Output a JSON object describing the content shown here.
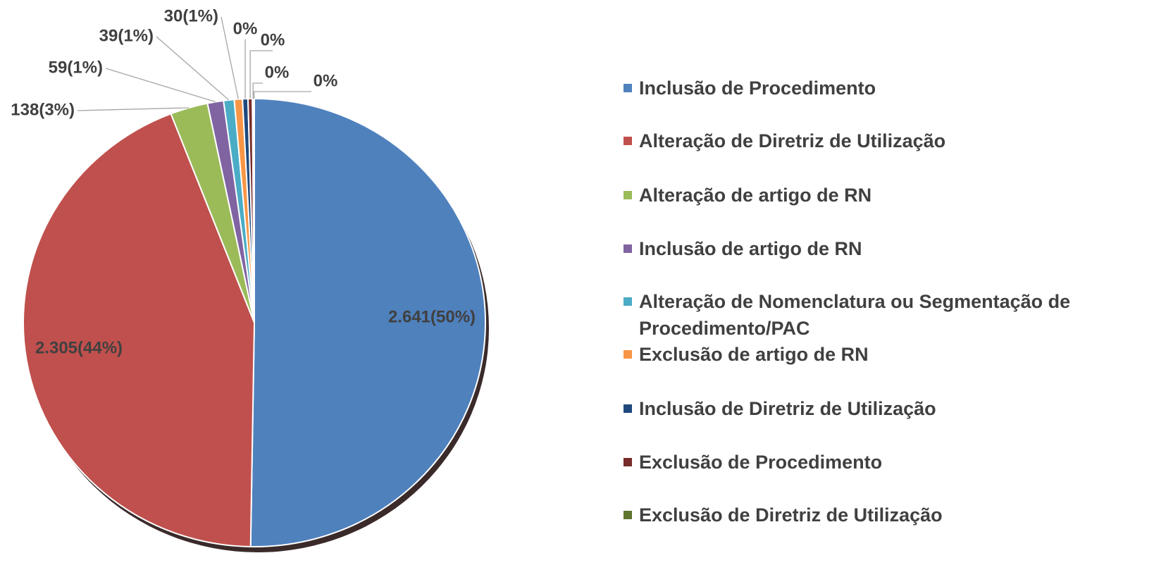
{
  "chart_data": {
    "type": "pie",
    "categories": [
      "Inclusão de Procedimento",
      "Alteração de Diretriz de Utilização",
      "Alteração de artigo de RN",
      "Inclusão de artigo de RN",
      "Alteração de Nomenclatura ou Segmentação de Procedimento/PAC",
      "Exclusão de artigo de RN",
      "Inclusão de Diretriz de Utilização",
      "Exclusão de Procedimento",
      "Exclusão de Diretriz de Utilização",
      null
    ],
    "values": [
      2641,
      2305,
      138,
      59,
      39,
      30,
      20,
      16,
      5,
      2
    ],
    "value_labels": [
      "2.641(50%)",
      "2.305(44%)",
      "138(3%)",
      "59(1%)",
      "39(1%)",
      "30(1%)",
      "0%",
      "0%",
      "0%",
      "0%"
    ],
    "colors": [
      "#4f81bd",
      "#c0504d",
      "#9bbb59",
      "#8064a2",
      "#4bacc6",
      "#f79646",
      "#1f497d",
      "#772c2a",
      "#5f7530",
      "#2c4d75"
    ],
    "legend": "right"
  }
}
